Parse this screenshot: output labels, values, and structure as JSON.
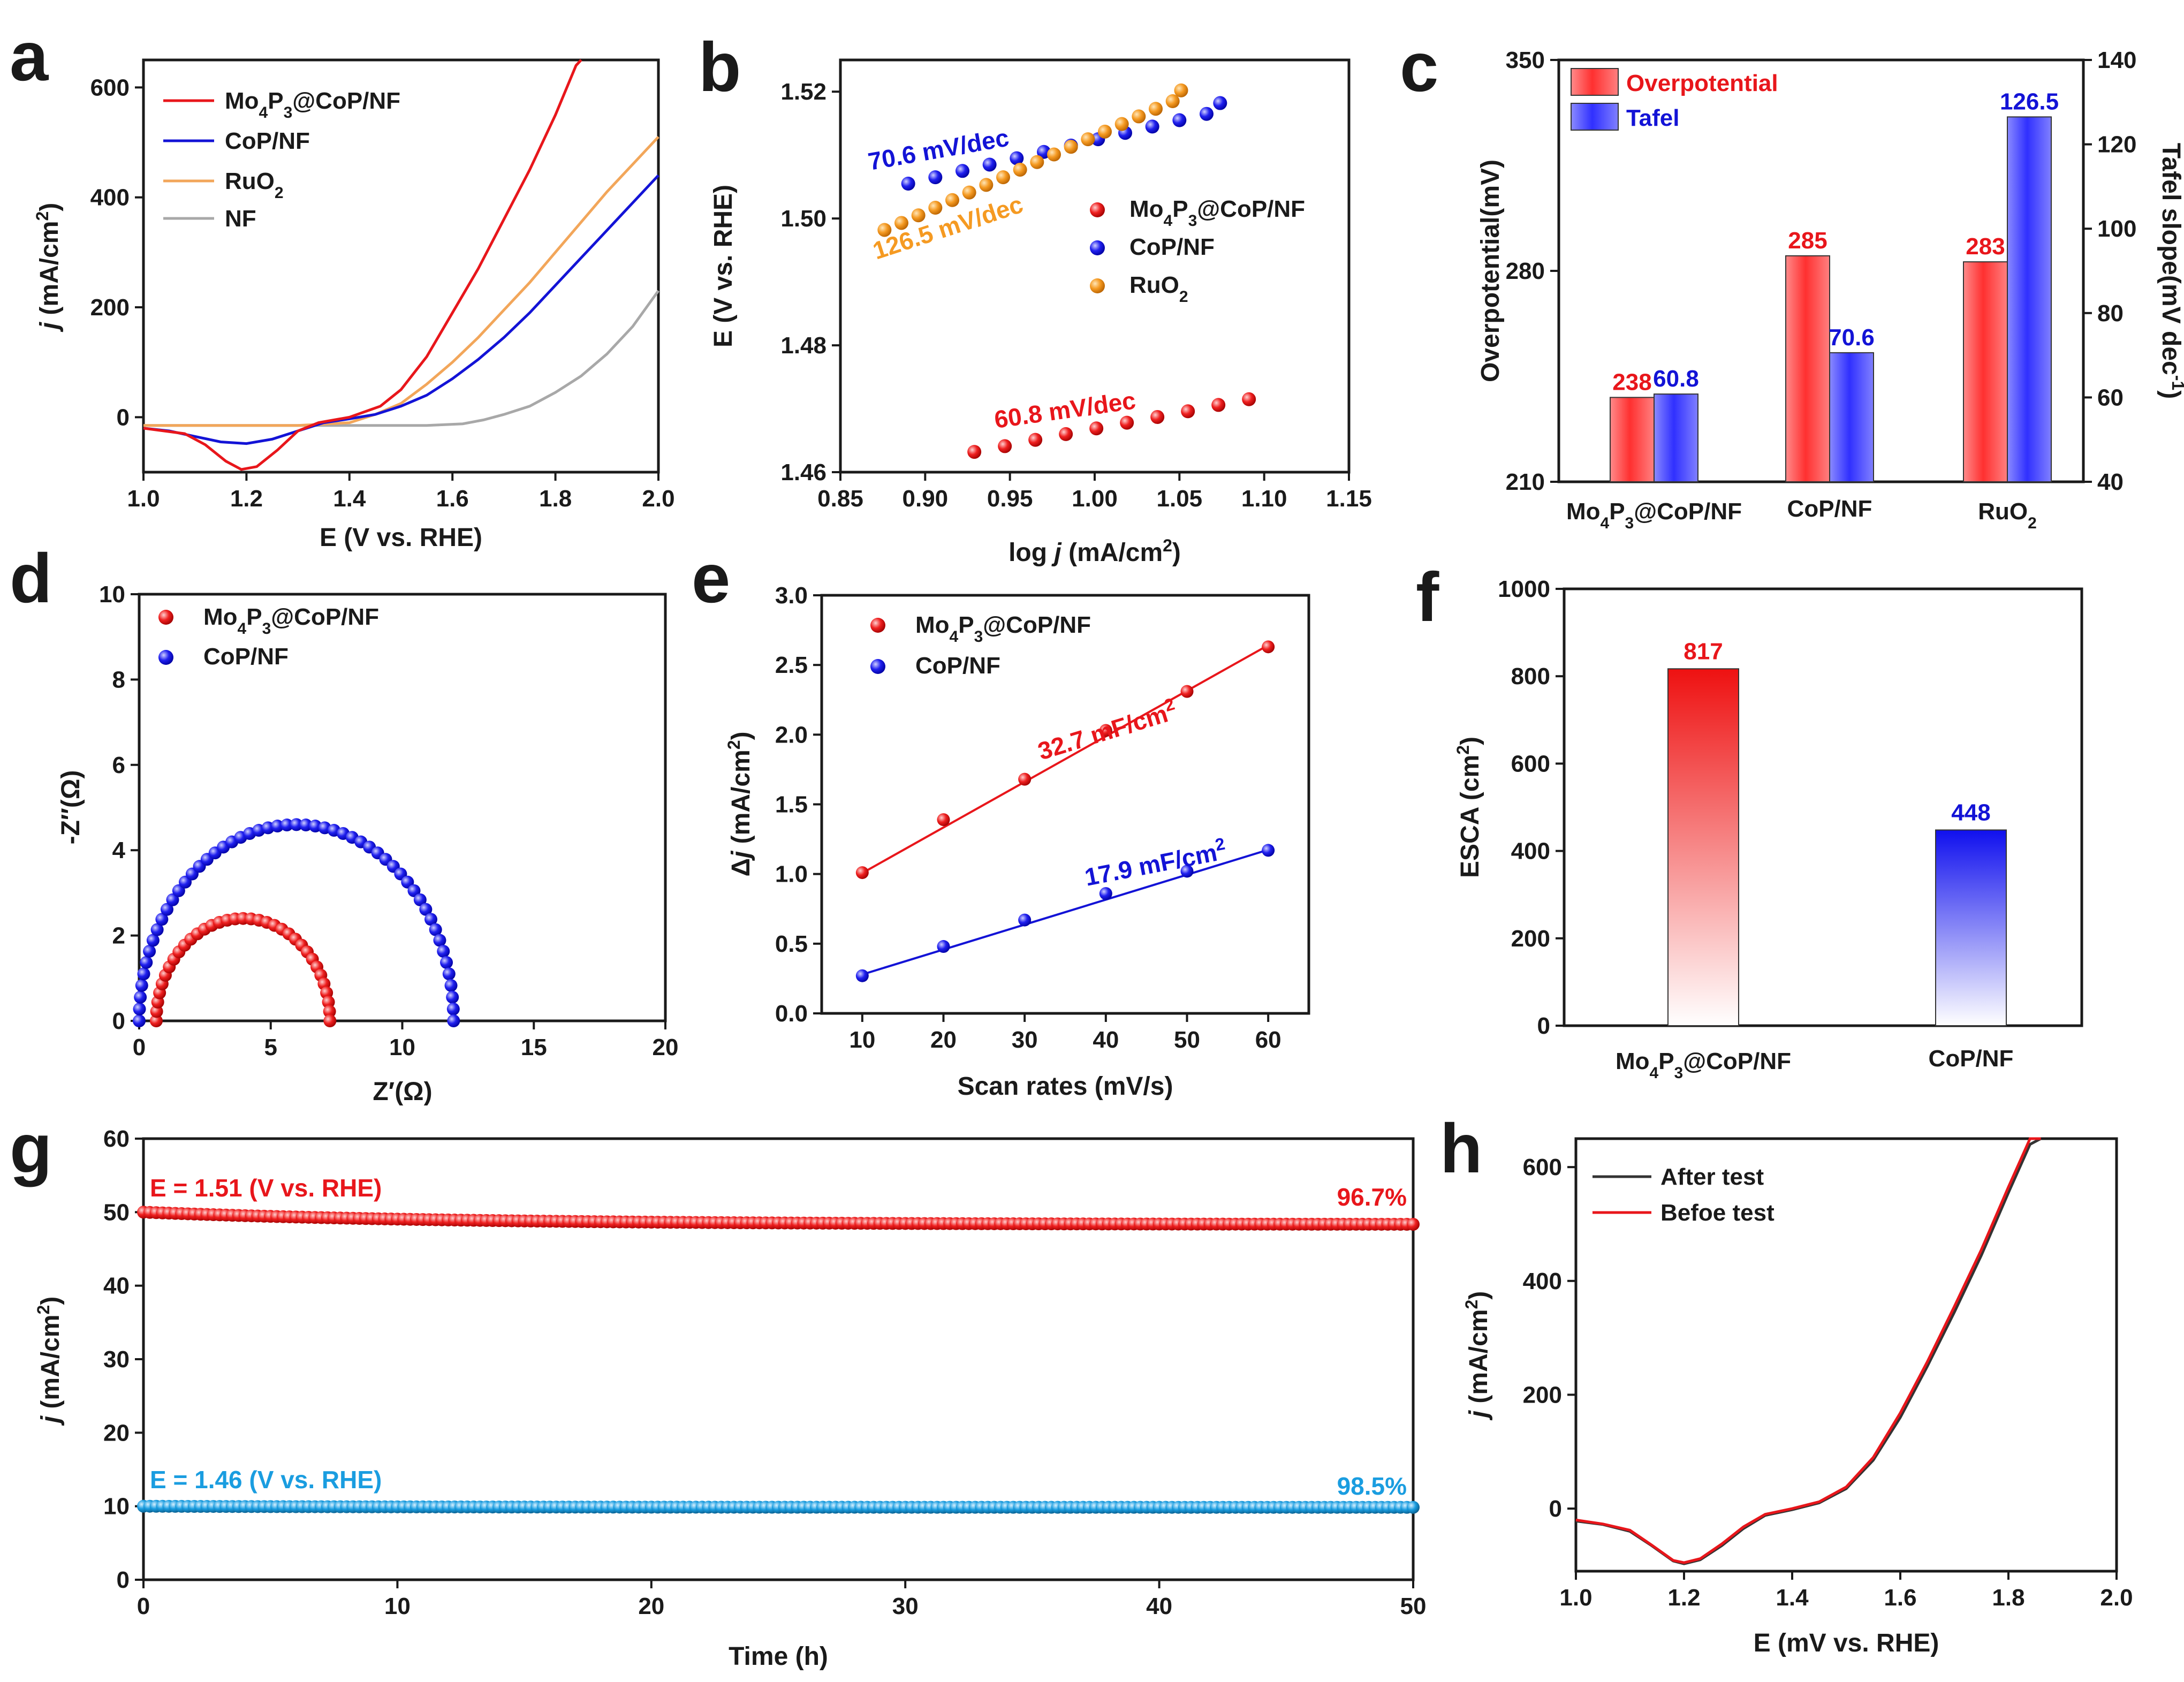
{
  "panel_labels": [
    "a",
    "b",
    "c",
    "d",
    "e",
    "f",
    "g",
    "h"
  ],
  "chart_data": [
    {
      "id": "a",
      "type": "line",
      "xlabel": "E (V vs. RHE)",
      "ylabel": "j (mA/cm2)",
      "xlim": [
        1.0,
        2.0
      ],
      "ylim": [
        -100,
        650
      ],
      "xticks": [
        1.0,
        1.2,
        1.4,
        1.6,
        1.8,
        2.0
      ],
      "yticks": [
        0,
        200,
        400,
        600
      ],
      "x_tick_labels": [
        "1.0",
        "1.2",
        "1.4",
        "1.6",
        "1.8",
        "2.0"
      ],
      "y_tick_labels": [
        "0",
        "200",
        "400",
        "600"
      ],
      "series": [
        {
          "name": "Mo4P3@CoP/NF",
          "color": "#e8161b",
          "x": [
            1.0,
            1.08,
            1.12,
            1.16,
            1.19,
            1.22,
            1.26,
            1.3,
            1.34,
            1.4,
            1.46,
            1.5,
            1.55,
            1.6,
            1.65,
            1.7,
            1.75,
            1.8,
            1.84,
            1.85
          ],
          "y": [
            -20,
            -30,
            -50,
            -80,
            -95,
            -90,
            -60,
            -25,
            -10,
            0,
            20,
            50,
            110,
            190,
            270,
            360,
            450,
            550,
            640,
            660
          ]
        },
        {
          "name": "CoP/NF",
          "color": "#1313d6",
          "x": [
            1.0,
            1.05,
            1.1,
            1.15,
            1.2,
            1.25,
            1.3,
            1.35,
            1.4,
            1.45,
            1.5,
            1.55,
            1.6,
            1.65,
            1.7,
            1.75,
            1.8,
            1.85,
            1.9,
            1.95,
            2.0
          ],
          "y": [
            -20,
            -25,
            -35,
            -45,
            -48,
            -40,
            -25,
            -10,
            -3,
            5,
            20,
            40,
            70,
            105,
            145,
            190,
            240,
            290,
            340,
            390,
            440
          ]
        },
        {
          "name": "RuO2",
          "color": "#f2a65a",
          "x": [
            1.0,
            1.1,
            1.2,
            1.3,
            1.4,
            1.45,
            1.5,
            1.55,
            1.6,
            1.65,
            1.7,
            1.75,
            1.8,
            1.85,
            1.9,
            1.95,
            2.0
          ],
          "y": [
            -15,
            -15,
            -15,
            -15,
            -10,
            5,
            25,
            60,
            100,
            145,
            195,
            245,
            300,
            355,
            410,
            460,
            510
          ]
        },
        {
          "name": "NF",
          "color": "#a8a8a8",
          "x": [
            1.0,
            1.2,
            1.4,
            1.55,
            1.62,
            1.66,
            1.7,
            1.75,
            1.8,
            1.85,
            1.9,
            1.95,
            2.0
          ],
          "y": [
            -15,
            -15,
            -15,
            -15,
            -12,
            -5,
            5,
            20,
            45,
            75,
            115,
            165,
            230
          ]
        }
      ]
    },
    {
      "id": "b",
      "type": "scatter",
      "xlabel": "log j (mA/cm2)",
      "ylabel": "E (V vs. RHE)",
      "xlim": [
        0.85,
        1.15
      ],
      "ylim": [
        1.46,
        1.525
      ],
      "xticks": [
        0.85,
        0.9,
        0.95,
        1.0,
        1.05,
        1.1,
        1.15
      ],
      "yticks": [
        1.46,
        1.48,
        1.5,
        1.52
      ],
      "x_tick_labels": [
        "0.85",
        "0.90",
        "0.95",
        "1.00",
        "1.05",
        "1.10",
        "1.15"
      ],
      "y_tick_labels": [
        "1.46",
        "1.48",
        "1.50",
        "1.52"
      ],
      "series": [
        {
          "name": "Mo4P3@CoP/NF",
          "color": "#e8161b",
          "x": [
            0.929,
            0.947,
            0.965,
            0.983,
            1.001,
            1.019,
            1.037,
            1.055,
            1.073,
            1.091
          ],
          "y": [
            1.4632,
            1.4641,
            1.4651,
            1.466,
            1.4669,
            1.4678,
            1.4687,
            1.4696,
            1.4706,
            1.4715
          ]
        },
        {
          "name": "CoP/NF",
          "color": "#1313d6",
          "x": [
            0.89,
            0.906,
            0.922,
            0.938,
            0.954,
            0.97,
            0.986,
            1.002,
            1.018,
            1.034,
            1.05,
            1.066,
            1.074
          ],
          "y": [
            1.5055,
            1.5065,
            1.5075,
            1.5085,
            1.5095,
            1.5105,
            1.5115,
            1.5125,
            1.5135,
            1.5145,
            1.5155,
            1.5165,
            1.5182
          ]
        },
        {
          "name": "RuO2",
          "color": "#f5a33a",
          "x": [
            0.876,
            0.886,
            0.896,
            0.906,
            0.916,
            0.926,
            0.936,
            0.946,
            0.956,
            0.966,
            0.976,
            0.986,
            0.996,
            1.006,
            1.016,
            1.026,
            1.036,
            1.046,
            1.051
          ],
          "y": [
            1.4982,
            1.4993,
            1.5005,
            1.5017,
            1.5029,
            1.5041,
            1.5053,
            1.5065,
            1.5077,
            1.5089,
            1.5101,
            1.5113,
            1.5125,
            1.5137,
            1.5149,
            1.5161,
            1.5173,
            1.5185,
            1.5202
          ]
        }
      ],
      "annotations": [
        {
          "text": "70.6 mV/dec",
          "color": "#1313d6"
        },
        {
          "text": "126.5 mV/dec",
          "color": "#f59a22"
        },
        {
          "text": "60.8 mV/dec",
          "color": "#e8161b"
        }
      ]
    },
    {
      "id": "c",
      "type": "bar",
      "categories": [
        "Mo4P3@CoP/NF",
        "CoP/NF",
        "RuO2"
      ],
      "ylabel": "Overpotential(mV)",
      "ylabel_right": "Tafel slope(mV dec-1)",
      "ylim": [
        210,
        350
      ],
      "ylim_right": [
        40,
        140
      ],
      "yticks": [
        210,
        280,
        350
      ],
      "yticks_right": [
        40,
        60,
        80,
        100,
        120,
        140
      ],
      "y_tick_labels": [
        "210",
        "280",
        "350"
      ],
      "y_right_tick_labels": [
        "40",
        "60",
        "80",
        "100",
        "120",
        "140"
      ],
      "series": [
        {
          "name": "Overpotential",
          "color": "#e8161b",
          "axis": "left",
          "values": [
            238,
            285,
            283
          ],
          "labels": [
            "238",
            "285",
            "283"
          ]
        },
        {
          "name": "Tafel",
          "color": "#1313d6",
          "axis": "right",
          "values": [
            60.8,
            70.6,
            126.5
          ],
          "labels": [
            "60.8",
            "70.6",
            "126.5"
          ]
        }
      ]
    },
    {
      "id": "d",
      "type": "scatter",
      "xlabel": "Z′(Ω)",
      "ylabel": "-Z″(Ω)",
      "xlim": [
        0,
        20
      ],
      "ylim": [
        0,
        10
      ],
      "xticks": [
        0,
        5,
        10,
        15,
        20
      ],
      "yticks": [
        0,
        2,
        4,
        6,
        8,
        10
      ],
      "x_tick_labels": [
        "0",
        "5",
        "10",
        "15",
        "20"
      ],
      "y_tick_labels": [
        "0",
        "2",
        "4",
        "6",
        "8",
        "10"
      ],
      "series": [
        {
          "name": "Mo4P3@CoP/NF",
          "color": "#ef3b3b",
          "semicircle": {
            "start": 0.65,
            "end": 7.25,
            "height": 2.4,
            "points": 34
          }
        },
        {
          "name": "CoP/NF",
          "color": "#2424d8",
          "semicircle": {
            "start": 0.0,
            "end": 11.95,
            "height": 4.6,
            "points": 52
          }
        }
      ]
    },
    {
      "id": "e",
      "type": "scatter",
      "xlabel": "Scan rates (mV/s)",
      "ylabel": "Δj (mA/cm2)",
      "xlim": [
        5,
        65
      ],
      "ylim": [
        0,
        3.0
      ],
      "xticks": [
        10,
        20,
        30,
        40,
        50,
        60
      ],
      "yticks": [
        0,
        0.5,
        1.0,
        1.5,
        2.0,
        2.5,
        3.0
      ],
      "x_tick_labels": [
        "10",
        "20",
        "30",
        "40",
        "50",
        "60"
      ],
      "y_tick_labels": [
        "0.0",
        "0.5",
        "1.0",
        "1.5",
        "2.0",
        "2.5",
        "3.0"
      ],
      "series": [
        {
          "name": "Mo4P3@CoP/NF",
          "color": "#e8161b",
          "x": [
            10,
            20,
            30,
            40,
            50,
            60
          ],
          "y": [
            1.01,
            1.39,
            1.68,
            2.03,
            2.31,
            2.63
          ],
          "fit": [
            0.68,
            0.0327
          ]
        },
        {
          "name": "CoP/NF",
          "color": "#1313d6",
          "x": [
            10,
            20,
            30,
            40,
            50,
            60
          ],
          "y": [
            0.27,
            0.48,
            0.67,
            0.86,
            1.02,
            1.17
          ],
          "fit": [
            0.1,
            0.0179
          ]
        }
      ],
      "annotations": [
        {
          "text": "32.7 mF/cm2",
          "color": "#e8161b"
        },
        {
          "text": "17.9 mF/cm2",
          "color": "#1313d6"
        }
      ]
    },
    {
      "id": "f",
      "type": "bar",
      "categories": [
        "Mo4P3@CoP/NF",
        "CoP/NF"
      ],
      "ylabel": "ESCA (cm2)",
      "ylim": [
        0,
        1000
      ],
      "yticks": [
        0,
        200,
        400,
        600,
        800,
        1000
      ],
      "y_tick_labels": [
        "0",
        "200",
        "400",
        "600",
        "800",
        "1000"
      ],
      "values": [
        817,
        448
      ],
      "labels": [
        "817",
        "448"
      ],
      "colors": [
        "#e8161b",
        "#1313d6"
      ]
    },
    {
      "id": "g",
      "type": "line",
      "xlabel": "Time (h)",
      "ylabel": "j (mA/cm2)",
      "xlim": [
        0,
        50
      ],
      "ylim": [
        0,
        60
      ],
      "xticks": [
        0,
        10,
        20,
        30,
        40,
        50
      ],
      "yticks": [
        0,
        10,
        20,
        30,
        40,
        50,
        60
      ],
      "x_tick_labels": [
        "0",
        "10",
        "20",
        "30",
        "40",
        "50"
      ],
      "y_tick_labels": [
        "0",
        "10",
        "20",
        "30",
        "40",
        "50",
        "60"
      ],
      "series": [
        {
          "name": "E = 1.51 (V vs. RHE)",
          "color": "#e8161b",
          "start": 50.0,
          "end": 48.35,
          "retention": "96.7%"
        },
        {
          "name": "E = 1.46 (V vs. RHE)",
          "color": "#1a9de0",
          "start": 10.0,
          "end": 9.85,
          "retention": "98.5%"
        }
      ]
    },
    {
      "id": "h",
      "type": "line",
      "xlabel": "E (mV vs. RHE)",
      "ylabel": "j (mA/cm2)",
      "xlim": [
        1.0,
        2.0
      ],
      "ylim": [
        -110,
        650
      ],
      "xticks": [
        1.0,
        1.2,
        1.4,
        1.6,
        1.8,
        2.0
      ],
      "yticks": [
        0,
        200,
        400,
        600
      ],
      "x_tick_labels": [
        "1.0",
        "1.2",
        "1.4",
        "1.6",
        "1.8",
        "2.0"
      ],
      "y_tick_labels": [
        "0",
        "200",
        "400",
        "600"
      ],
      "series": [
        {
          "name": "After test",
          "color": "#333333",
          "x": [
            1.0,
            1.05,
            1.1,
            1.14,
            1.18,
            1.2,
            1.23,
            1.27,
            1.31,
            1.35,
            1.4,
            1.45,
            1.5,
            1.55,
            1.6,
            1.65,
            1.7,
            1.75,
            1.8,
            1.84,
            1.86
          ],
          "y": [
            -22,
            -28,
            -40,
            -65,
            -92,
            -97,
            -90,
            -65,
            -35,
            -12,
            -2,
            10,
            35,
            85,
            160,
            250,
            345,
            445,
            555,
            640,
            660
          ]
        },
        {
          "name": "Befoe test",
          "color": "#e8161b",
          "x": [
            1.0,
            1.05,
            1.1,
            1.14,
            1.18,
            1.2,
            1.23,
            1.27,
            1.31,
            1.35,
            1.4,
            1.45,
            1.5,
            1.55,
            1.6,
            1.65,
            1.7,
            1.75,
            1.8,
            1.84,
            1.86
          ],
          "y": [
            -20,
            -27,
            -38,
            -64,
            -91,
            -95,
            -88,
            -62,
            -32,
            -10,
            0,
            12,
            38,
            90,
            168,
            258,
            355,
            455,
            565,
            650,
            668
          ]
        }
      ]
    }
  ]
}
